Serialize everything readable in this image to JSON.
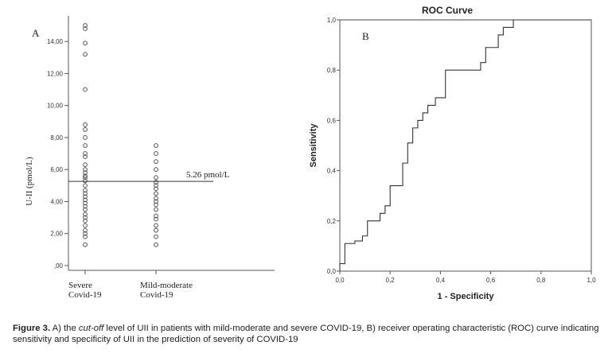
{
  "chart_data": [
    {
      "type": "scatter",
      "panel_label": "A",
      "ylabel": "U-II (pmol/L)",
      "categories": [
        "Severe Covid-19",
        "Mild-moderate Covid-19"
      ],
      "category_lines": [
        [
          "Severe",
          "Covid-19"
        ],
        [
          "Mild-moderate",
          "Covid-19"
        ]
      ],
      "yticks": [
        {
          "value": 0,
          "label": ",00"
        },
        {
          "value": 2,
          "label": "2,00"
        },
        {
          "value": 4,
          "label": "4,00"
        },
        {
          "value": 6,
          "label": "6,00"
        },
        {
          "value": 8,
          "label": "8,00"
        },
        {
          "value": 10,
          "label": "10,00"
        },
        {
          "value": 12,
          "label": "12,00"
        },
        {
          "value": 14,
          "label": "14,00"
        }
      ],
      "ylim": [
        -0.3,
        15.6
      ],
      "cutoff_value": 5.26,
      "cutoff_label": "5.26 pmol/L",
      "series": [
        {
          "values": [
            1.3,
            1.8,
            2.0,
            2.2,
            2.5,
            2.8,
            3.0,
            3.2,
            3.5,
            3.7,
            3.9,
            4.1,
            4.3,
            4.5,
            4.7,
            5.0,
            5.3,
            5.5,
            5.6,
            5.8,
            6.0,
            6.3,
            6.8,
            7.0,
            7.5,
            8.0,
            8.5,
            8.8,
            11.0,
            13.2,
            13.9,
            14.8,
            15.0
          ]
        },
        {
          "values": [
            1.3,
            1.8,
            2.2,
            2.5,
            2.9,
            3.1,
            3.5,
            3.8,
            4.0,
            4.2,
            4.5,
            4.8,
            5.0,
            5.2,
            5.5,
            6.0,
            6.5,
            7.0,
            7.5
          ]
        }
      ]
    },
    {
      "type": "line",
      "title": "ROC Curve",
      "panel_label": "B",
      "xlabel": "1 - Specificity",
      "ylabel": "Sensitivity",
      "xlim": [
        0,
        1
      ],
      "ylim": [
        0,
        1
      ],
      "ticks": [
        {
          "value": 0,
          "label": "0,0"
        },
        {
          "value": 0.2,
          "label": "0,2"
        },
        {
          "value": 0.4,
          "label": "0,4"
        },
        {
          "value": 0.6,
          "label": "0,6"
        },
        {
          "value": 0.8,
          "label": "0,8"
        },
        {
          "value": 1,
          "label": "1,0"
        }
      ],
      "reference_line": [
        [
          0,
          1
        ],
        [
          1,
          1
        ]
      ],
      "roc_points": [
        [
          0,
          0
        ],
        [
          0,
          0.03
        ],
        [
          0.02,
          0.03
        ],
        [
          0.02,
          0.11
        ],
        [
          0.06,
          0.11
        ],
        [
          0.06,
          0.12
        ],
        [
          0.09,
          0.12
        ],
        [
          0.09,
          0.14
        ],
        [
          0.11,
          0.14
        ],
        [
          0.11,
          0.2
        ],
        [
          0.16,
          0.2
        ],
        [
          0.16,
          0.23
        ],
        [
          0.18,
          0.23
        ],
        [
          0.18,
          0.26
        ],
        [
          0.2,
          0.26
        ],
        [
          0.2,
          0.34
        ],
        [
          0.25,
          0.34
        ],
        [
          0.25,
          0.43
        ],
        [
          0.27,
          0.43
        ],
        [
          0.27,
          0.51
        ],
        [
          0.29,
          0.51
        ],
        [
          0.29,
          0.57
        ],
        [
          0.31,
          0.57
        ],
        [
          0.31,
          0.6
        ],
        [
          0.33,
          0.6
        ],
        [
          0.33,
          0.63
        ],
        [
          0.35,
          0.63
        ],
        [
          0.35,
          0.66
        ],
        [
          0.38,
          0.66
        ],
        [
          0.38,
          0.69
        ],
        [
          0.42,
          0.69
        ],
        [
          0.42,
          0.8
        ],
        [
          0.56,
          0.8
        ],
        [
          0.56,
          0.83
        ],
        [
          0.58,
          0.83
        ],
        [
          0.58,
          0.89
        ],
        [
          0.63,
          0.89
        ],
        [
          0.63,
          0.94
        ],
        [
          0.65,
          0.94
        ],
        [
          0.65,
          0.97
        ],
        [
          0.69,
          0.97
        ],
        [
          0.69,
          1
        ],
        [
          1,
          1
        ]
      ]
    }
  ],
  "caption": {
    "label": "Figure 3.",
    "part1": " A) the ",
    "italic": "cut-off",
    "part2": " level of UII in patients with mild-moderate and severe COVID-19, B) receiver operating characteristic (ROC) curve indicating sensitivity and specificity of UII in the prediction of severity of COVID-19"
  }
}
